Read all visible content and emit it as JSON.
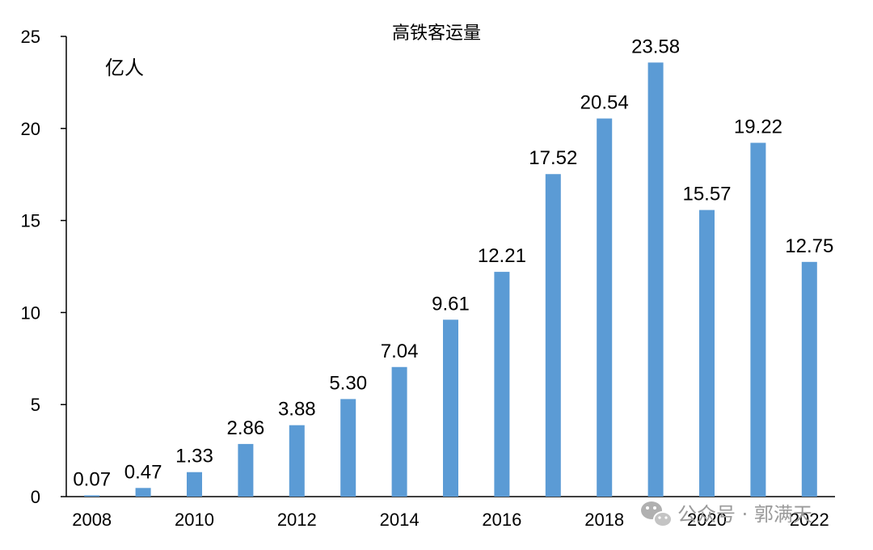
{
  "chart_data": {
    "type": "bar",
    "title": "高铁客运量",
    "unit": "亿人",
    "categories": [
      "2008",
      "2009",
      "2010",
      "2011",
      "2012",
      "2013",
      "2014",
      "2015",
      "2016",
      "2017",
      "2018",
      "2019",
      "2020",
      "2021",
      "2022"
    ],
    "values": [
      0.07,
      0.47,
      1.33,
      2.86,
      3.88,
      5.3,
      7.04,
      9.61,
      12.21,
      17.52,
      20.54,
      23.58,
      15.57,
      19.22,
      12.75
    ],
    "data_labels": [
      "0.07",
      "0.47",
      "1.33",
      "2.86",
      "3.88",
      "5.30",
      "7.04",
      "9.61",
      "12.21",
      "17.52",
      "20.54",
      "23.58",
      "15.57",
      "19.22",
      "12.75"
    ],
    "x_tick_labels": [
      "2008",
      "2010",
      "2012",
      "2014",
      "2016",
      "2018",
      "2020",
      "2022"
    ],
    "y_ticks": [
      "0",
      "5",
      "10",
      "15",
      "20",
      "25"
    ],
    "ylim": [
      0,
      25
    ],
    "grid": false,
    "legend": "none",
    "bar_color": "#5b9bd5"
  },
  "watermark": {
    "icon": "wechat-icon",
    "text": "公众号 · 郭满天"
  }
}
